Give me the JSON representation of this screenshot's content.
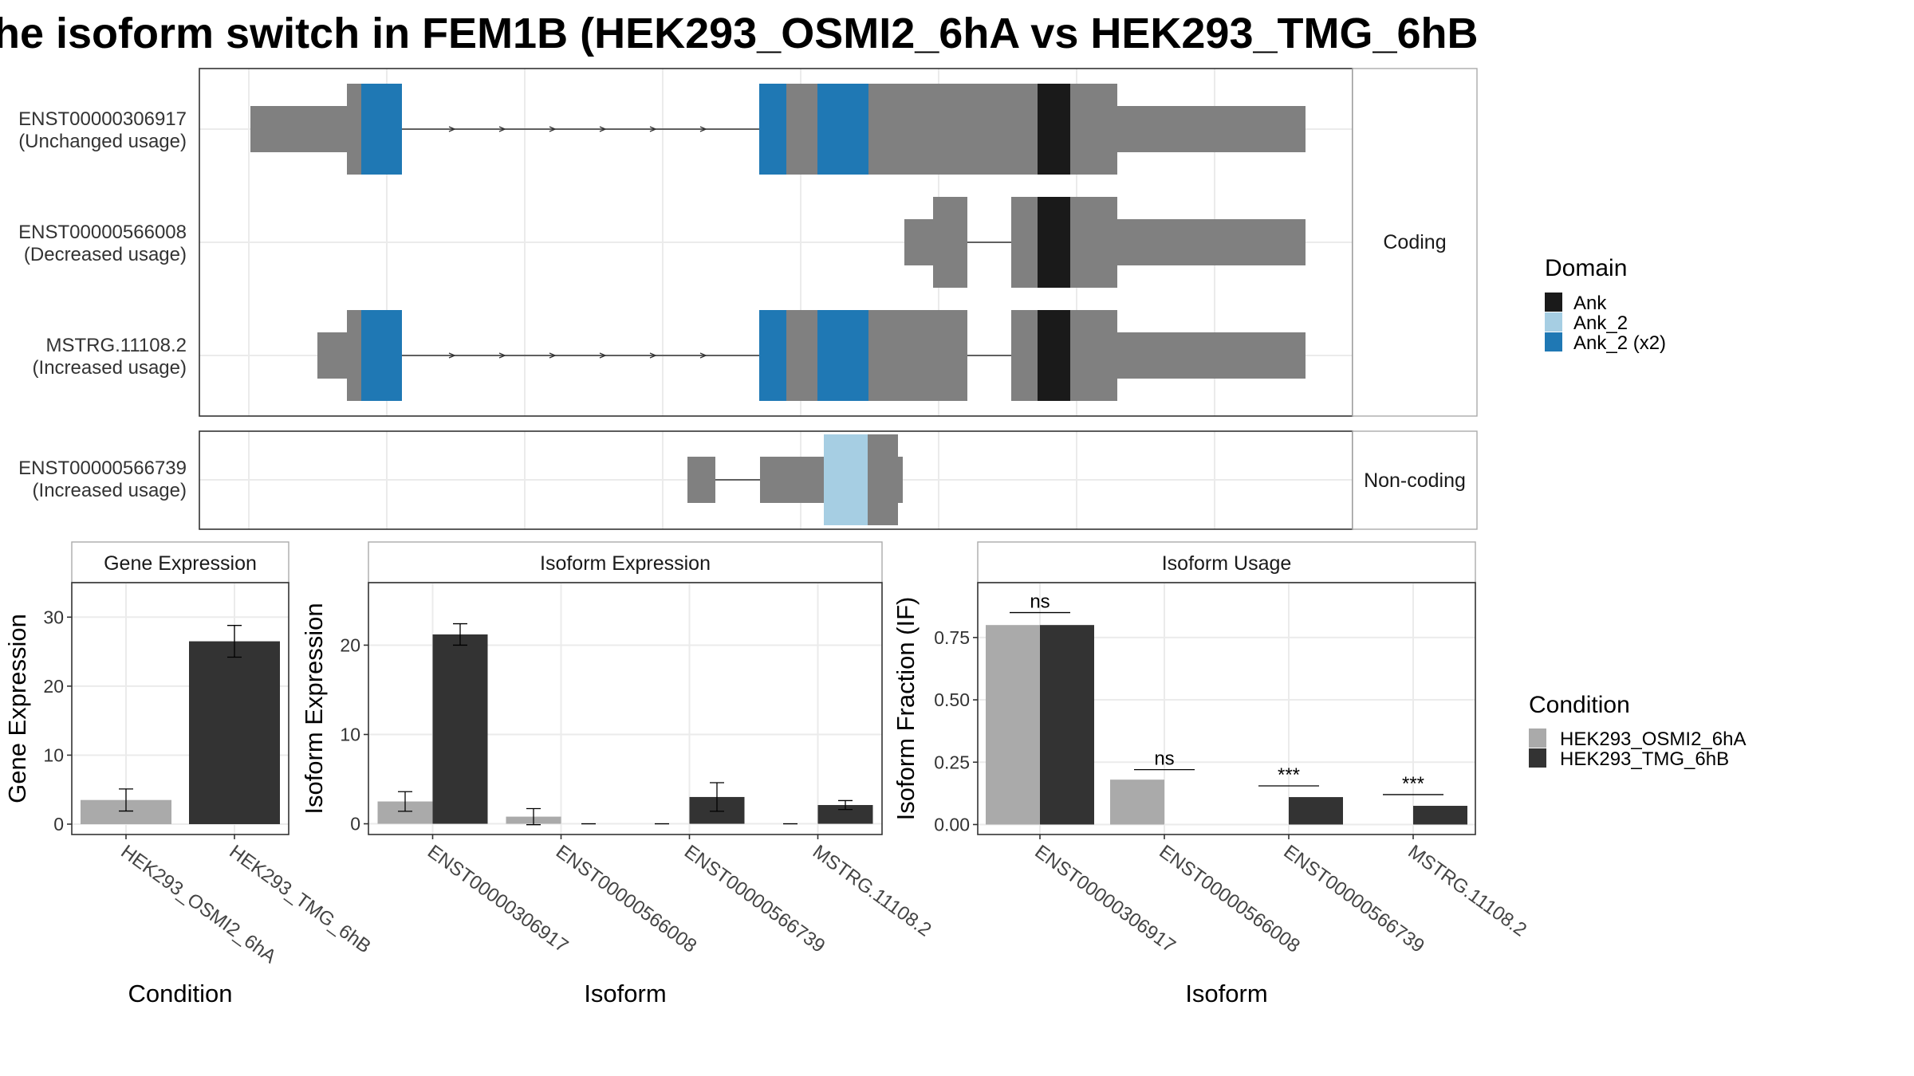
{
  "title": "he isoform switch in FEM1B (HEK293_OSMI2_6hA vs HEK293_TMG_6hB",
  "colors": {
    "exon": "#808080",
    "ank": "#1a1a1a",
    "ank_2": "#a6cee3",
    "ank_2_x2": "#1f78b4",
    "cond_a": "#aaaaaa",
    "cond_b": "#333333",
    "grid": "#ebebeb"
  },
  "domain_legend": {
    "title": "Domain",
    "items": [
      {
        "label": "Ank",
        "color": "#1a1a1a"
      },
      {
        "label": "Ank_2",
        "color": "#a6cee3"
      },
      {
        "label": "Ank_2 (x2)",
        "color": "#1f78b4"
      }
    ]
  },
  "condition_legend": {
    "title": "Condition",
    "items": [
      {
        "label": "HEK293_OSMI2_6hA",
        "color": "#aaaaaa"
      },
      {
        "label": "HEK293_TMG_6hB",
        "color": "#333333"
      }
    ]
  },
  "transcript_panels": [
    {
      "strip": "Coding",
      "rows": [
        {
          "id": "ENST00000306917",
          "usage": "(Unchanged usage)"
        },
        {
          "id": "ENST00000566008",
          "usage": "(Decreased usage)"
        },
        {
          "id": "MSTRG.11108.2",
          "usage": "(Increased usage)"
        }
      ]
    },
    {
      "strip": "Non-coding",
      "rows": [
        {
          "id": "ENST00000566739",
          "usage": "(Increased usage)"
        }
      ]
    }
  ],
  "chart_data": [
    {
      "type": "bar",
      "title": "Gene Expression",
      "xlabel": "Condition",
      "ylabel": "Gene Expression",
      "categories": [
        "HEK293_OSMI2_6hA",
        "HEK293_TMG_6hB"
      ],
      "series": [
        {
          "name": "HEK293_OSMI2_6hA",
          "values": [
            3.5,
            null
          ],
          "error": [
            1.6,
            null
          ]
        },
        {
          "name": "HEK293_TMG_6hB",
          "values": [
            null,
            26.5
          ],
          "error": [
            null,
            2.3
          ]
        }
      ],
      "ylim": [
        -1.5,
        35
      ],
      "yticks": [
        0,
        10,
        20,
        30
      ],
      "grid": true
    },
    {
      "type": "bar",
      "title": "Isoform Expression",
      "xlabel": "Isoform",
      "ylabel": "Isoform Expression",
      "categories": [
        "ENST00000306917",
        "ENST00000566008",
        "ENST00000566739",
        "MSTRG.11108.2"
      ],
      "series": [
        {
          "name": "HEK293_OSMI2_6hA",
          "values": [
            2.5,
            0.8,
            0.0,
            0.0
          ],
          "error": [
            1.1,
            0.9,
            0.0,
            0.0
          ]
        },
        {
          "name": "HEK293_TMG_6hB",
          "values": [
            21.2,
            0.0,
            3.0,
            2.1
          ],
          "error": [
            1.2,
            0.0,
            1.6,
            0.5
          ]
        }
      ],
      "ylim": [
        -1.2,
        27
      ],
      "yticks": [
        0,
        10,
        20
      ],
      "grid": true
    },
    {
      "type": "bar",
      "title": "Isoform Usage",
      "xlabel": "Isoform",
      "ylabel": "Isoform Fraction (IF)",
      "categories": [
        "ENST00000306917",
        "ENST00000566008",
        "ENST00000566739",
        "MSTRG.11108.2"
      ],
      "series": [
        {
          "name": "HEK293_OSMI2_6hA",
          "values": [
            0.8,
            0.18,
            0.0,
            0.0
          ]
        },
        {
          "name": "HEK293_TMG_6hB",
          "values": [
            0.8,
            0.0,
            0.11,
            0.075
          ]
        }
      ],
      "significance": [
        "ns",
        "ns",
        "***",
        "***"
      ],
      "significance_line_y": [
        0.85,
        0.22,
        0.155,
        0.12
      ],
      "ylim": [
        -0.04,
        0.97
      ],
      "yticks": [
        "0.00",
        "0.25",
        "0.50",
        "0.75"
      ],
      "grid": true
    }
  ]
}
